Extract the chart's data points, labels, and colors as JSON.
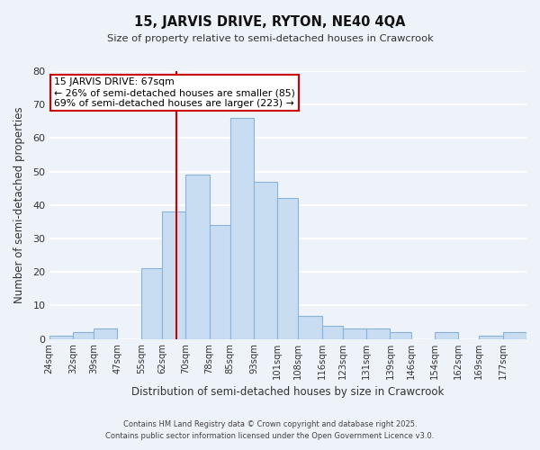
{
  "title": "15, JARVIS DRIVE, RYTON, NE40 4QA",
  "subtitle": "Size of property relative to semi-detached houses in Crawcrook",
  "xlabel": "Distribution of semi-detached houses by size in Crawcrook",
  "ylabel": "Number of semi-detached properties",
  "bin_labels": [
    "24sqm",
    "32sqm",
    "39sqm",
    "47sqm",
    "55sqm",
    "62sqm",
    "70sqm",
    "78sqm",
    "85sqm",
    "93sqm",
    "101sqm",
    "108sqm",
    "116sqm",
    "123sqm",
    "131sqm",
    "139sqm",
    "146sqm",
    "154sqm",
    "162sqm",
    "169sqm",
    "177sqm"
  ],
  "bin_edges": [
    24,
    32,
    39,
    47,
    55,
    62,
    70,
    78,
    85,
    93,
    101,
    108,
    116,
    123,
    131,
    139,
    146,
    154,
    162,
    169,
    177,
    185
  ],
  "counts": [
    1,
    2,
    3,
    0,
    21,
    38,
    49,
    34,
    66,
    47,
    42,
    7,
    4,
    3,
    3,
    2,
    0,
    2,
    0,
    1,
    2
  ],
  "bar_color": "#c9ddf2",
  "bar_edge_color": "#89b4d9",
  "property_value": 67,
  "vline_color": "#cc0000",
  "annotation_line1": "15 JARVIS DRIVE: 67sqm",
  "annotation_line2": "← 26% of semi-detached houses are smaller (85)",
  "annotation_line3": "69% of semi-detached houses are larger (223) →",
  "annotation_box_color": "#ffffff",
  "annotation_box_edge": "#cc0000",
  "ylim": [
    0,
    80
  ],
  "yticks": [
    0,
    10,
    20,
    30,
    40,
    50,
    60,
    70,
    80
  ],
  "footnote1": "Contains HM Land Registry data © Crown copyright and database right 2025.",
  "footnote2": "Contains public sector information licensed under the Open Government Licence v3.0.",
  "background_color": "#eef2f9",
  "grid_color": "#ffffff"
}
